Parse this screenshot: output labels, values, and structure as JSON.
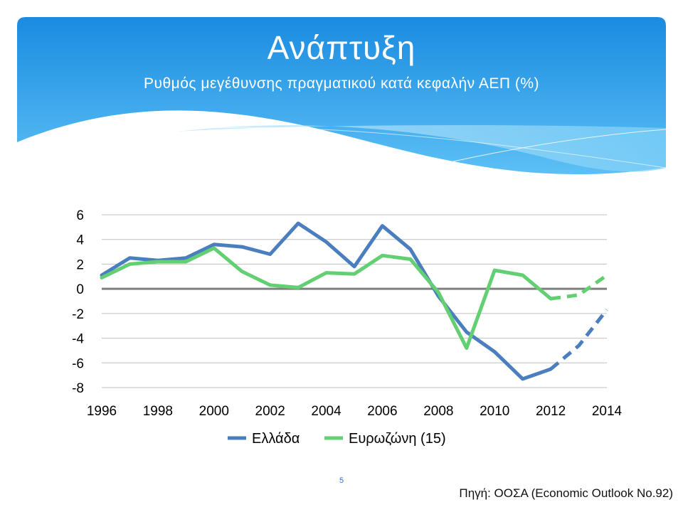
{
  "slide": {
    "title": "Ανάπτυξη",
    "subtitle": "Ρυθμός μεγέθυνσης πραγματικού κατά κεφαλήν ΑΕΠ (%)",
    "page_number": "5",
    "source": "Πηγή: ΟΟΣΑ (Economic Outlook No.92)"
  },
  "colors": {
    "banner_top": "#1a8be0",
    "banner_bottom": "#5cc0f5",
    "greece": "#4a7ebf",
    "eurozone": "#62cf72",
    "grid": "#bfbfbf",
    "zero_line": "#7f7f7f"
  },
  "chart_data": {
    "type": "line",
    "x": [
      1996,
      1997,
      1998,
      1999,
      2000,
      2001,
      2002,
      2003,
      2004,
      2005,
      2006,
      2007,
      2008,
      2009,
      2010,
      2011,
      2012,
      2013,
      2014
    ],
    "xticks": [
      "1996",
      "1998",
      "2000",
      "2002",
      "2004",
      "2006",
      "2008",
      "2010",
      "2012",
      "2014"
    ],
    "yticks": [
      "6",
      "4",
      "2",
      "0",
      "-2",
      "-4",
      "-6",
      "-8"
    ],
    "ylim": [
      -8,
      6
    ],
    "xlim": [
      1996,
      2014
    ],
    "projection_from": 2012,
    "series": [
      {
        "name": "Ελλάδα",
        "color": "#4a7ebf",
        "values": [
          1.1,
          2.5,
          2.3,
          2.5,
          3.6,
          3.4,
          2.8,
          5.3,
          3.8,
          1.8,
          5.1,
          3.2,
          -0.6,
          -3.5,
          -5.1,
          -7.3,
          -6.5,
          -4.6,
          -1.7
        ]
      },
      {
        "name": "Ευρωζώνη (15)",
        "color": "#62cf72",
        "values": [
          0.9,
          2.0,
          2.2,
          2.2,
          3.3,
          1.4,
          0.3,
          0.1,
          1.3,
          1.2,
          2.7,
          2.4,
          -0.3,
          -4.8,
          1.5,
          1.1,
          -0.8,
          -0.5,
          1.1
        ]
      }
    ],
    "grid": true,
    "legend_position": "bottom"
  }
}
